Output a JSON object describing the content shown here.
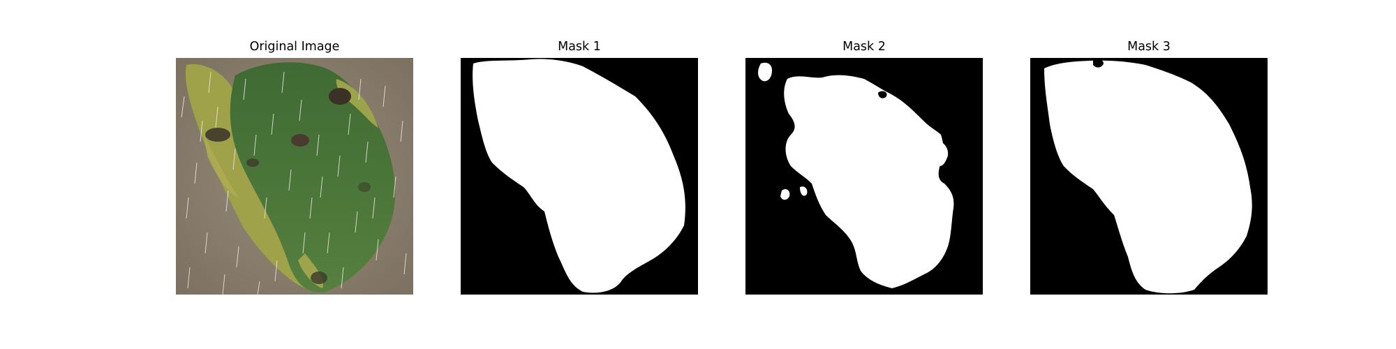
{
  "panels": [
    {
      "title": "Original Image",
      "kind": "photo",
      "subject": "leaf"
    },
    {
      "title": "Mask 1",
      "kind": "mask"
    },
    {
      "title": "Mask 2",
      "kind": "mask"
    },
    {
      "title": "Mask 3",
      "kind": "mask"
    }
  ],
  "colors": {
    "background": "#ffffff",
    "mask_bg": "#000000",
    "mask_fg": "#ffffff",
    "photo_bg": "#8f8373",
    "leaf_dark": "#4a6d36",
    "leaf_mid": "#5e8a3e",
    "leaf_yellow": "#a3a84c",
    "rain": "#e8e6e0"
  }
}
